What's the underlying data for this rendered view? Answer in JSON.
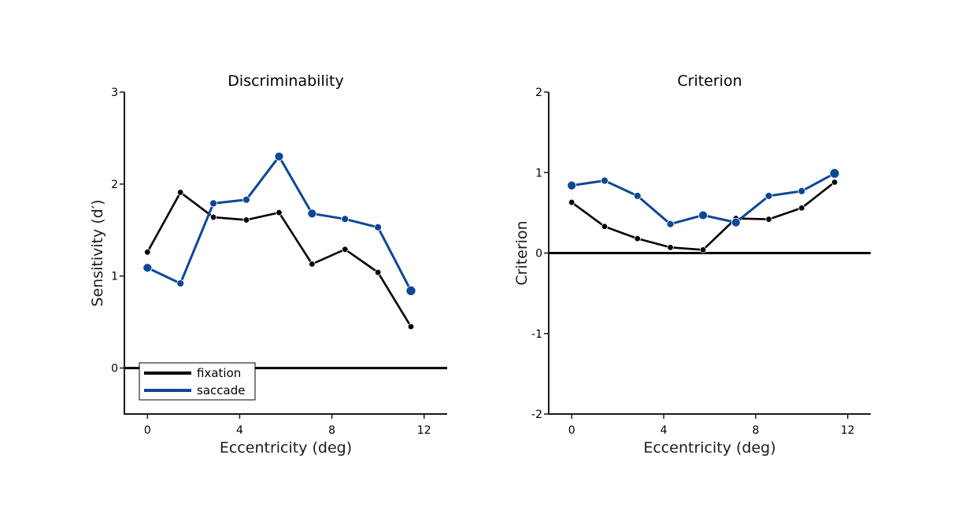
{
  "colors": {
    "fixation": "#000000",
    "saccade": "#0b4894",
    "axis": "#1a1a1a"
  },
  "legend": {
    "placement": "lower-left",
    "entries": [
      "fixation",
      "saccade"
    ]
  },
  "chart_data": [
    {
      "type": "line",
      "title": "Discriminability",
      "xlabel": "Eccentricity (deg)",
      "ylabel": "Sensitivity (d′)",
      "xlim": [
        -1,
        13
      ],
      "ylim": [
        -0.5,
        3
      ],
      "xticks": [
        0,
        4,
        8,
        12
      ],
      "xtick_labels": [
        "0",
        "4",
        "8",
        "12"
      ],
      "yticks": [
        0,
        1,
        2,
        3
      ],
      "ytick_labels": [
        "0",
        "1",
        "2",
        "3"
      ],
      "zero_line": true,
      "grid": false,
      "legend": true,
      "series": [
        {
          "name": "fixation",
          "x": [
            0,
            1.43,
            2.86,
            4.29,
            5.71,
            7.14,
            8.57,
            10.0,
            11.43
          ],
          "y": [
            1.26,
            1.91,
            1.64,
            1.61,
            1.69,
            1.13,
            1.29,
            1.04,
            0.45
          ]
        },
        {
          "name": "saccade",
          "x": [
            0,
            1.43,
            2.86,
            4.29,
            5.71,
            7.14,
            8.57,
            10.0,
            11.43
          ],
          "y": [
            1.09,
            0.92,
            1.79,
            1.83,
            2.3,
            1.68,
            1.62,
            1.53,
            0.84
          ]
        }
      ]
    },
    {
      "type": "line",
      "title": "Criterion",
      "xlabel": "Eccentricity (deg)",
      "ylabel": "Criterion",
      "xlim": [
        -1,
        13
      ],
      "ylim": [
        -2,
        2
      ],
      "xticks": [
        0,
        4,
        8,
        12
      ],
      "xtick_labels": [
        "0",
        "4",
        "8",
        "12"
      ],
      "yticks": [
        -2,
        -1,
        0,
        1,
        2
      ],
      "ytick_labels": [
        "-2",
        "-1",
        "0",
        "1",
        "2"
      ],
      "zero_line": true,
      "grid": false,
      "legend": false,
      "series": [
        {
          "name": "fixation",
          "x": [
            0,
            1.43,
            2.86,
            4.29,
            5.71,
            7.14,
            8.57,
            10.0,
            11.43
          ],
          "y": [
            0.63,
            0.33,
            0.18,
            0.07,
            0.04,
            0.43,
            0.42,
            0.56,
            0.88
          ]
        },
        {
          "name": "saccade",
          "x": [
            0,
            1.43,
            2.86,
            4.29,
            5.71,
            7.14,
            8.57,
            10.0,
            11.43
          ],
          "y": [
            0.84,
            0.9,
            0.71,
            0.36,
            0.47,
            0.38,
            0.71,
            0.77,
            0.99
          ]
        }
      ]
    }
  ]
}
